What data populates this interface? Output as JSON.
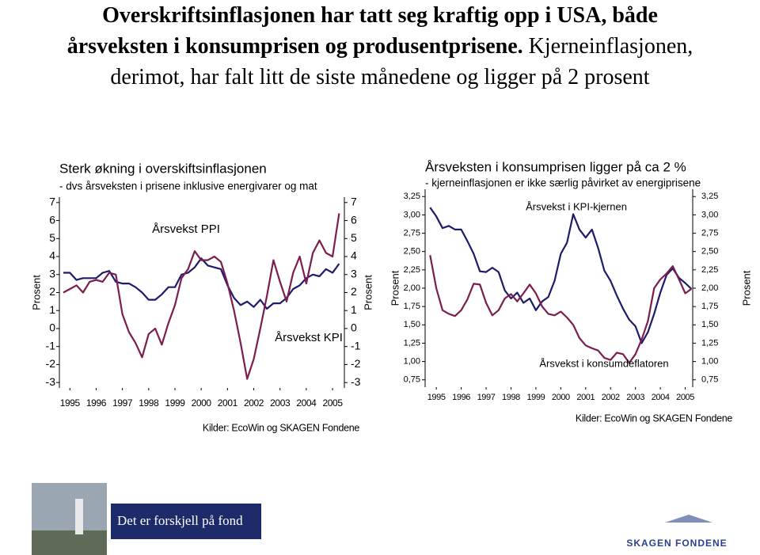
{
  "title_lines": [
    [
      "Overskriftsinflasjonen har tatt seg kraftig opp i USA, både"
    ],
    [
      "årsveksten i konsumprisen og produsentprisene.",
      "Kjerneinflasjonen,"
    ],
    [
      "derimot, har falt litt de siste månedene og ligger på 2 prosent"
    ]
  ],
  "chart_data": [
    {
      "type": "line",
      "title": "Sterk økning i overskiftsinflasjonen",
      "subtitle": "- dvs årsveksten i prisene inklusive energivarer og mat",
      "ylabel": "Prosent",
      "y2label": "Prosent",
      "source": "Kilder: EcoWin og SKAGEN Fondene",
      "x": [
        1994.75,
        1995,
        1995.25,
        1995.5,
        1995.75,
        1996,
        1996.25,
        1996.5,
        1996.75,
        1997,
        1997.25,
        1997.5,
        1997.75,
        1998,
        1998.25,
        1998.5,
        1998.75,
        1999,
        1999.25,
        1999.5,
        1999.75,
        2000,
        2000.25,
        2000.5,
        2000.75,
        2001,
        2001.25,
        2001.5,
        2001.75,
        2002,
        2002.25,
        2002.5,
        2002.75,
        2003,
        2003.25,
        2003.5,
        2003.75,
        2004,
        2004.25,
        2004.5,
        2004.75,
        2005,
        2005.25
      ],
      "xlim": [
        1994.6,
        2005.45
      ],
      "xticks": [
        1995,
        1996,
        1997,
        1998,
        1999,
        2000,
        2001,
        2002,
        2003,
        2004,
        2005
      ],
      "ylim": [
        -3.3,
        7.3
      ],
      "yticks": [
        -3,
        -2,
        -1,
        0,
        1,
        2,
        3,
        4,
        5,
        6,
        7
      ],
      "y2lim": [
        -3.3,
        7.3
      ],
      "y2ticks": [
        -3,
        -2,
        -1,
        0,
        1,
        2,
        3,
        4,
        5,
        6,
        7
      ],
      "series": [
        {
          "name": "Årsvekst KPI",
          "color": "#1c1c6b",
          "values": [
            3.1,
            3.1,
            2.7,
            2.8,
            2.8,
            2.8,
            3.1,
            3.2,
            2.6,
            2.5,
            2.5,
            2.3,
            2.0,
            1.6,
            1.6,
            1.9,
            2.3,
            2.3,
            3.0,
            3.1,
            3.4,
            3.9,
            3.5,
            3.4,
            3.3,
            2.4,
            1.7,
            1.3,
            1.5,
            1.2,
            1.6,
            1.1,
            1.4,
            1.4,
            1.7,
            2.2,
            2.4,
            2.8,
            3.0,
            2.9,
            3.3,
            3.1,
            3.6
          ]
        },
        {
          "name": "Årsvekst PPI",
          "color": "#7b1d4f",
          "values": [
            2.0,
            2.2,
            2.4,
            2.0,
            2.6,
            2.7,
            2.6,
            3.1,
            3.0,
            0.8,
            -0.2,
            -0.8,
            -1.6,
            -0.3,
            0,
            -0.9,
            0.3,
            1.3,
            2.8,
            3.3,
            4.3,
            3.8,
            3.8,
            4.0,
            3.7,
            2.5,
            1.0,
            -0.8,
            -2.8,
            -1.7,
            0,
            1.8,
            3.8,
            2.6,
            1.5,
            3.1,
            4.0,
            2.5,
            4.2,
            4.9,
            4.2,
            4.0,
            6.4
          ]
        }
      ]
    },
    {
      "type": "line",
      "title": "Årsveksten i konsumprisen ligger på ca 2 %",
      "subtitle": "- kjerneinflasjonen er ikke særlig påvirket av energiprisene",
      "ylabel": "Prosent",
      "y2label": "Prosent",
      "source": "Kilder: EcoWin og SKAGEN Fondene",
      "x": [
        1994.75,
        1995,
        1995.25,
        1995.5,
        1995.75,
        1996,
        1996.25,
        1996.5,
        1996.75,
        1997,
        1997.25,
        1997.5,
        1997.75,
        1998,
        1998.25,
        1998.5,
        1998.75,
        1999,
        1999.25,
        1999.5,
        1999.75,
        2000,
        2000.25,
        2000.5,
        2000.75,
        2001,
        2001.25,
        2001.5,
        2001.75,
        2002,
        2002.25,
        2002.5,
        2002.75,
        2003,
        2003.25,
        2003.5,
        2003.75,
        2004,
        2004.25,
        2004.5,
        2004.75,
        2005,
        2005.25
      ],
      "xlim": [
        1994.55,
        2005.3
      ],
      "xticks": [
        1995,
        1996,
        1997,
        1998,
        1999,
        2000,
        2001,
        2002,
        2003,
        2004,
        2005
      ],
      "ylim": [
        0.65,
        3.35
      ],
      "yticks": [
        {
          "value": 0.75,
          "label": "0,75"
        },
        {
          "value": 1,
          "label": "1,00"
        },
        {
          "value": 1.25,
          "label": "1,25"
        },
        {
          "value": 1.5,
          "label": "1,50"
        },
        {
          "value": 1.75,
          "label": "1,75"
        },
        {
          "value": 2,
          "label": "2,00"
        },
        {
          "value": 2.25,
          "label": "2,25"
        },
        {
          "value": 2.5,
          "label": "2,50"
        },
        {
          "value": 2.75,
          "label": "2,75"
        },
        {
          "value": 3,
          "label": "3,00"
        },
        {
          "value": 3.25,
          "label": "3,25"
        }
      ],
      "y2lim": [
        0.65,
        3.35
      ],
      "y2ticks": [
        {
          "value": 0.75,
          "label": "0,75"
        },
        {
          "value": 1,
          "label": "1,00"
        },
        {
          "value": 1.25,
          "label": "1,25"
        },
        {
          "value": 1.5,
          "label": "1,50"
        },
        {
          "value": 1.75,
          "label": "1,75"
        },
        {
          "value": 2,
          "label": "2,00"
        },
        {
          "value": 2.25,
          "label": "2,25"
        },
        {
          "value": 2.5,
          "label": "2,50"
        },
        {
          "value": 2.75,
          "label": "2,75"
        },
        {
          "value": 3,
          "label": "3,00"
        },
        {
          "value": 3.25,
          "label": "3,25"
        }
      ],
      "series": [
        {
          "name": "Årsvekst i KPI-kjernen",
          "color": "#1c1c6b",
          "values": [
            3.1,
            2.98,
            2.82,
            2.85,
            2.8,
            2.8,
            2.64,
            2.47,
            2.23,
            2.22,
            2.28,
            2.22,
            1.97,
            1.86,
            1.94,
            1.8,
            1.86,
            1.7,
            1.82,
            1.88,
            2.1,
            2.47,
            2.62,
            3.01,
            2.8,
            2.69,
            2.8,
            2.55,
            2.24,
            2.1,
            1.9,
            1.72,
            1.57,
            1.48,
            1.25,
            1.4,
            1.65,
            1.94,
            2.18,
            2.27,
            2.14,
            2.07,
            1.99
          ]
        },
        {
          "name": "Årsvekst i konsumdeflatoren",
          "color": "#7b1d4f",
          "values": [
            2.45,
            2.0,
            1.7,
            1.65,
            1.62,
            1.7,
            1.85,
            2.06,
            2.05,
            1.8,
            1.63,
            1.7,
            1.86,
            1.92,
            1.82,
            1.93,
            2.05,
            1.93,
            1.75,
            1.65,
            1.63,
            1.68,
            1.6,
            1.5,
            1.32,
            1.22,
            1.18,
            1.15,
            1.05,
            1.02,
            1.12,
            1.1,
            0.98,
            1.1,
            1.3,
            1.55,
            2.0,
            2.12,
            2.2,
            2.3,
            2.12,
            1.93,
            1.99
          ]
        }
      ]
    }
  ],
  "footer": {
    "slogan": "Det er forskjell på fond",
    "logo": "SKAGEN FONDENE"
  }
}
